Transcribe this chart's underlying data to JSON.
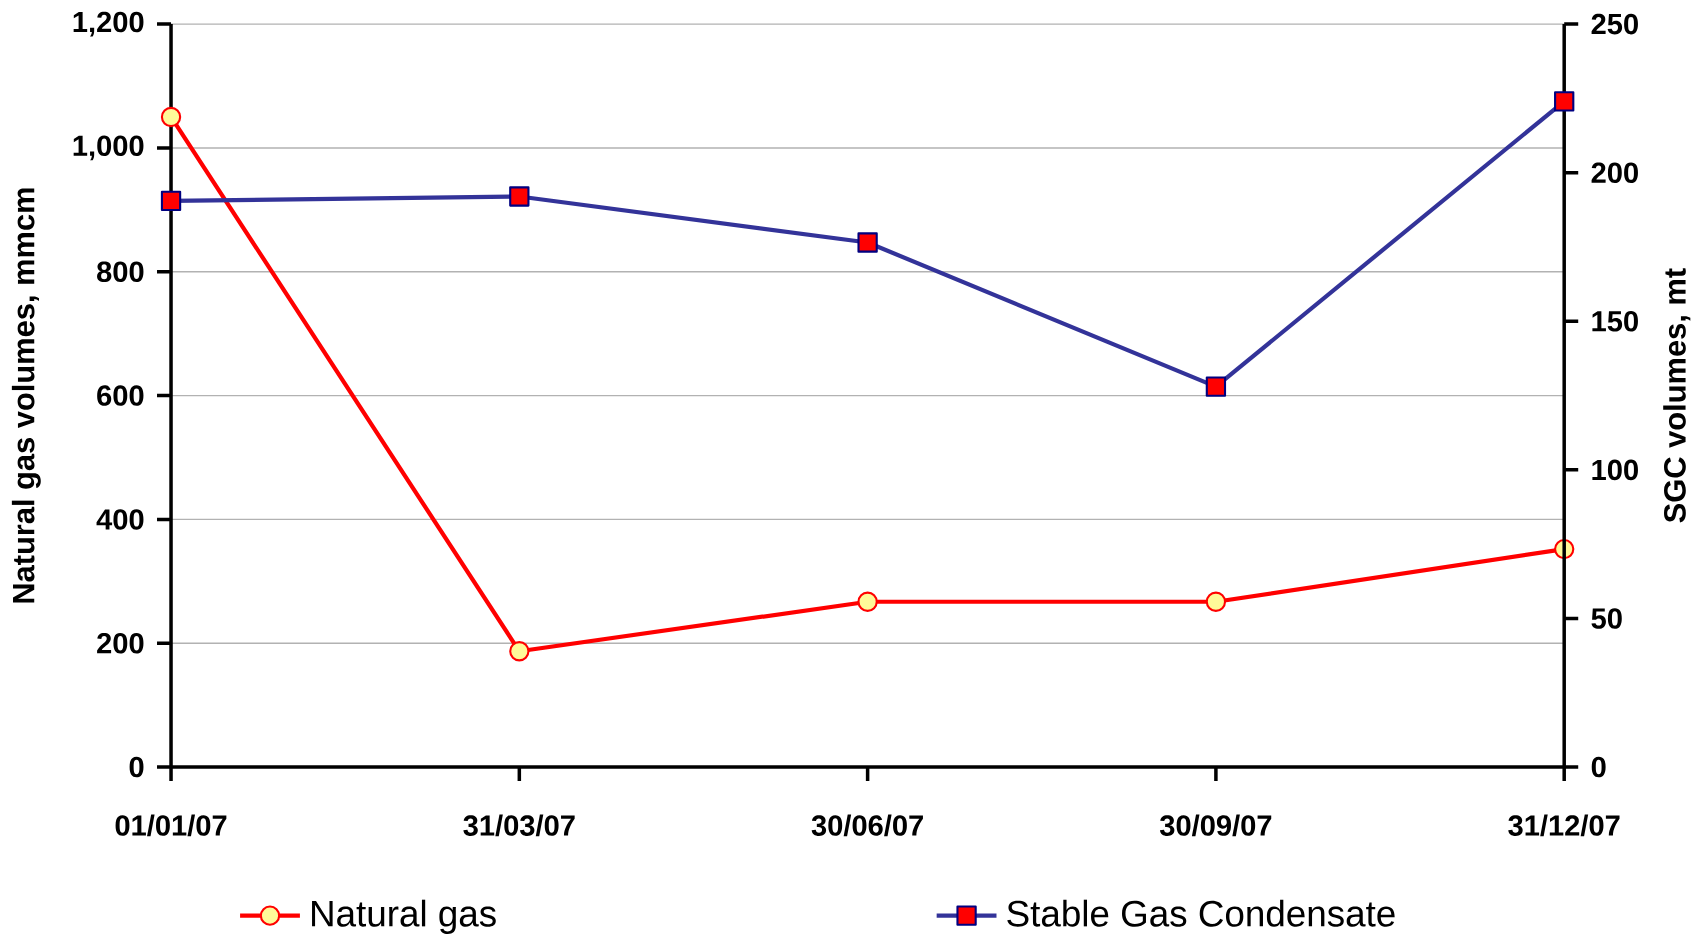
{
  "chart_data": {
    "type": "line",
    "categories": [
      "01/01/07",
      "31/03/07",
      "30/06/07",
      "30/09/07",
      "31/12/07"
    ],
    "ylabel": "Natural gas volumes, mmcm",
    "y2label": "SGC volumes, mt",
    "ylim": [
      0,
      1200
    ],
    "yticks": [
      0,
      {
        "value": 200,
        "label": "200"
      },
      {
        "value": 400,
        "label": "400"
      },
      {
        "value": 600,
        "label": "600"
      },
      {
        "value": 800,
        "label": "800"
      },
      {
        "value": 1000,
        "label": "1,000"
      },
      {
        "value": 1200,
        "label": "1,200"
      }
    ],
    "y2lim": [
      0,
      250
    ],
    "y2ticks": [
      0,
      50,
      100,
      150,
      200,
      250
    ],
    "grid": "y",
    "legend": "bottom",
    "series": [
      {
        "name": "Natural gas",
        "color": "#ff0000",
        "marker": "circle",
        "values": [
          1050,
          187,
          267,
          267,
          352
        ]
      },
      {
        "name": "Stable Gas Condensate",
        "color": "#333399",
        "marker": "square",
        "axis": "y2",
        "values": [
          190.5,
          192,
          176.5,
          128,
          224
        ]
      }
    ]
  }
}
